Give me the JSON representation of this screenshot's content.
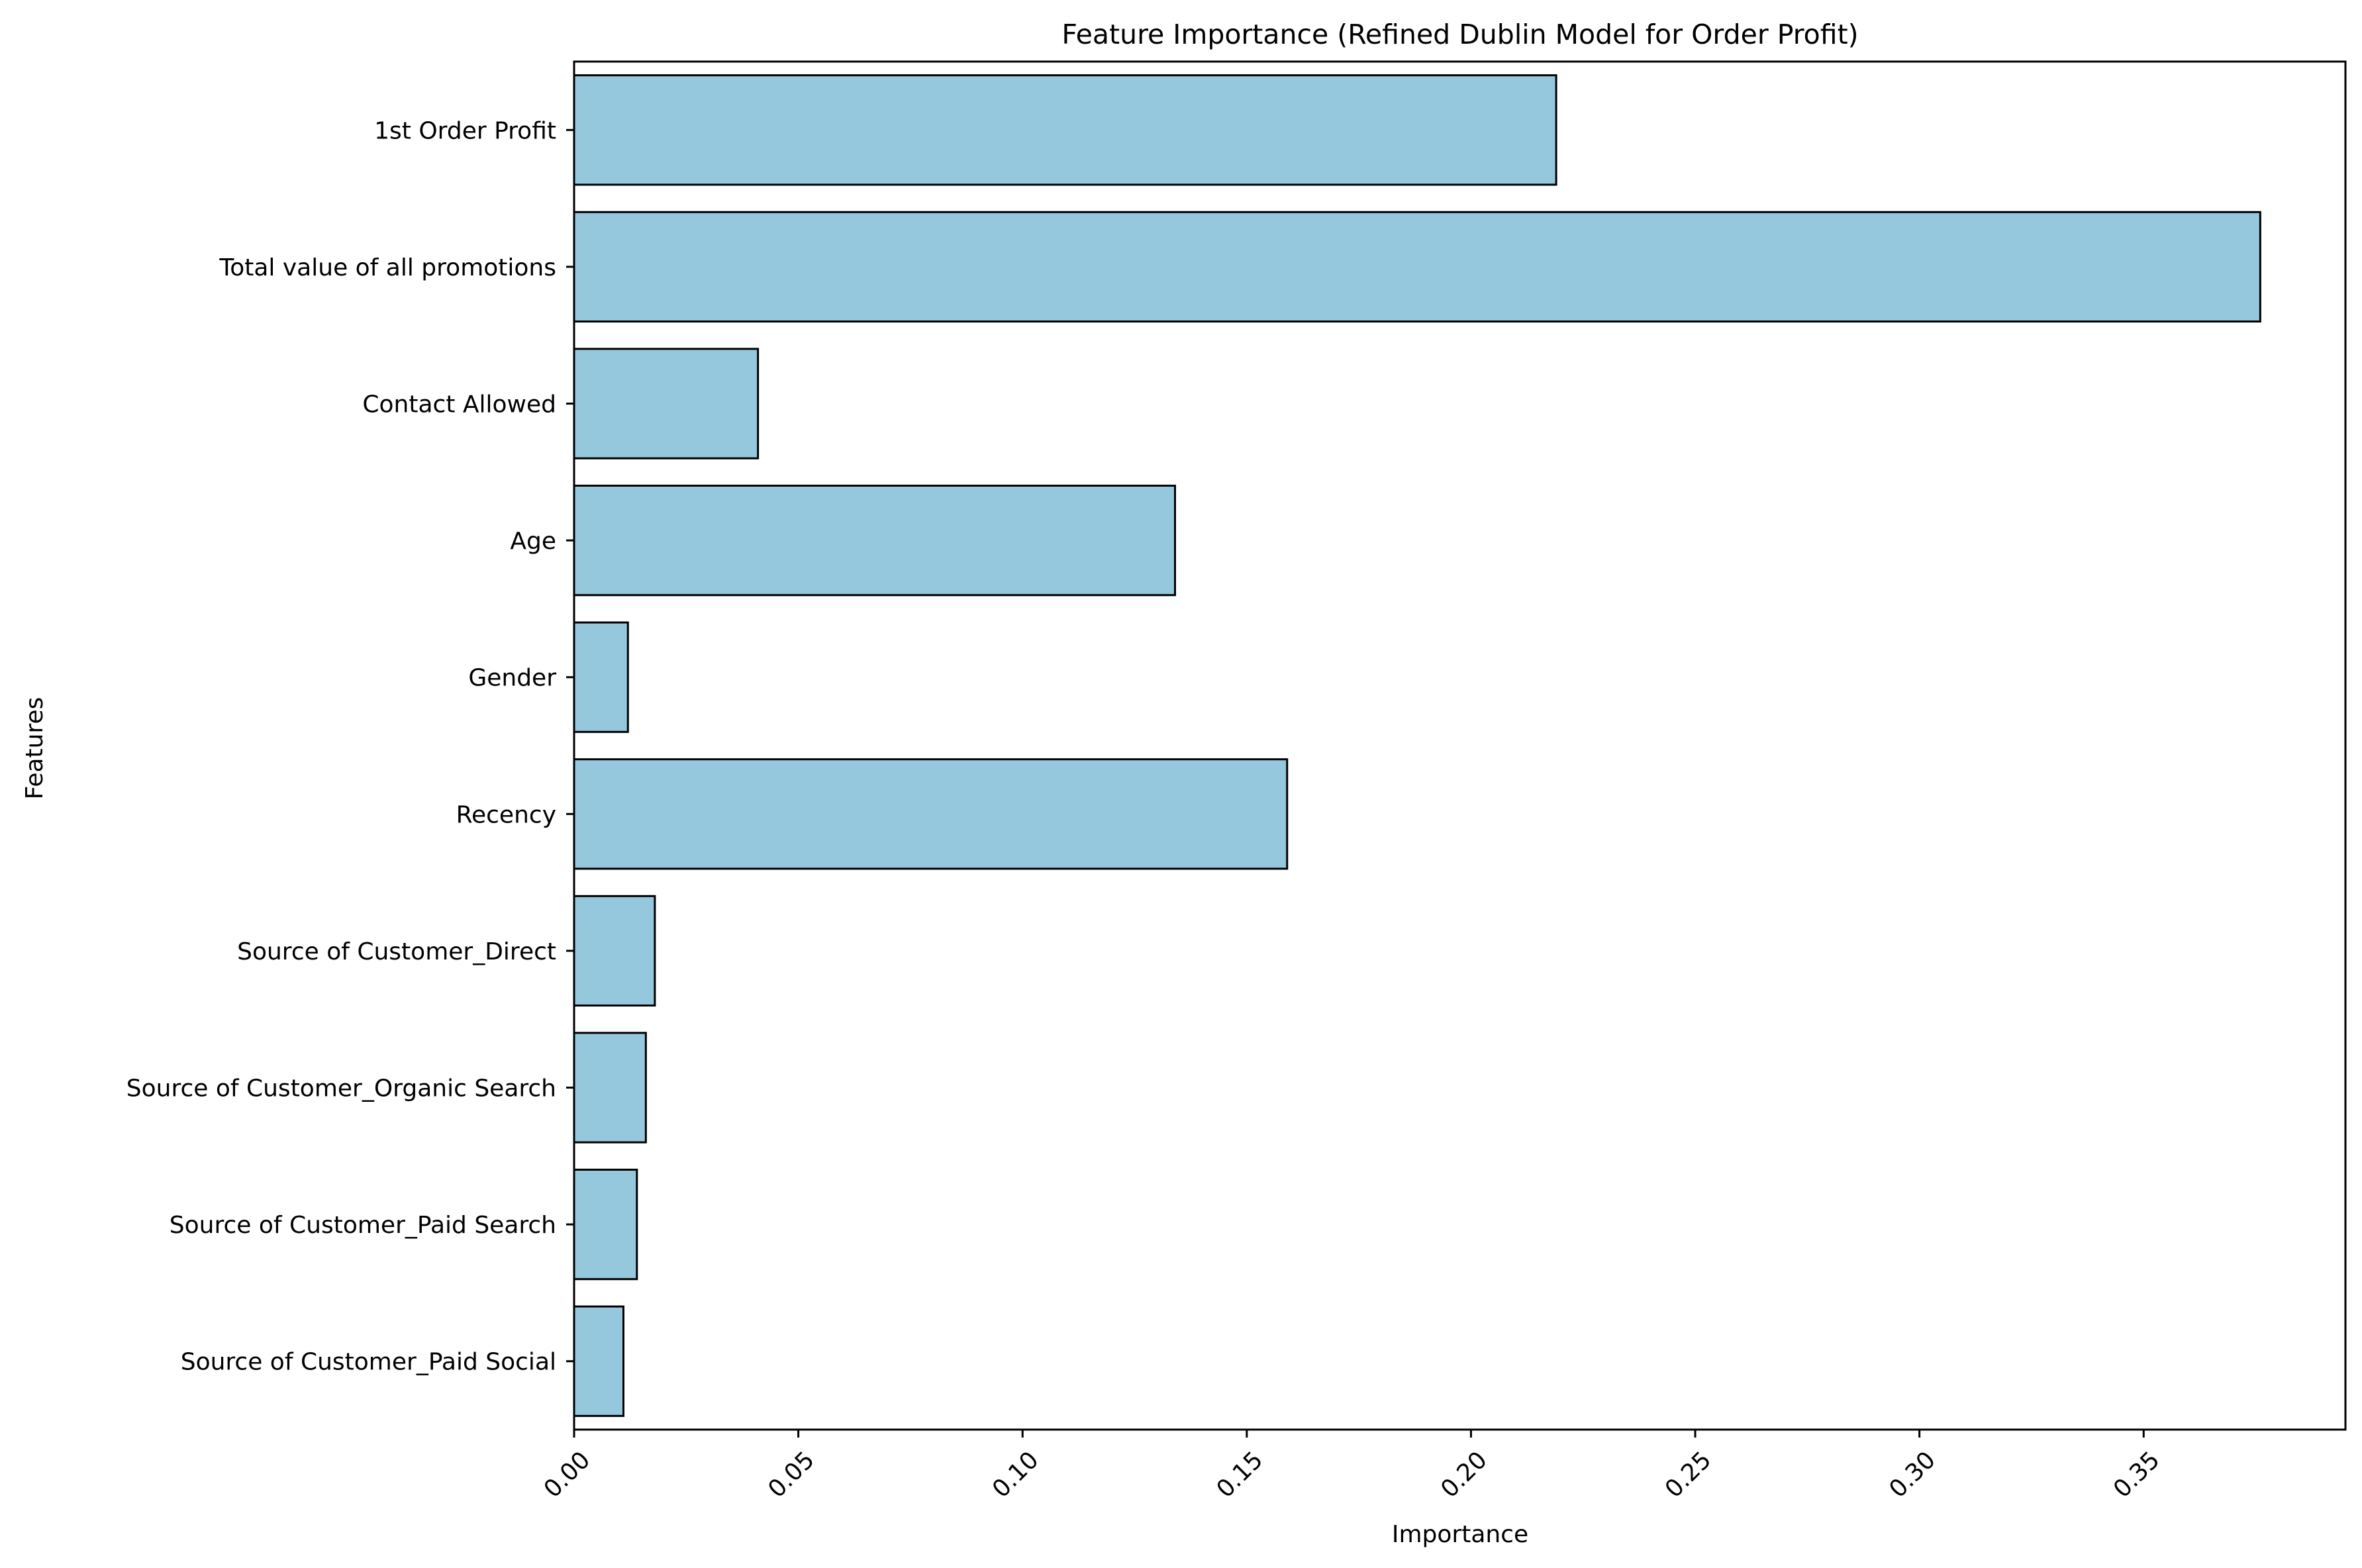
{
  "chart_data": {
    "type": "bar",
    "orientation": "horizontal",
    "title": "Feature Importance (Refined Dublin Model for Order Profit)",
    "xlabel": "Importance",
    "ylabel": "Features",
    "categories": [
      "1st Order Profit",
      "Total value of all promotions",
      "Contact Allowed",
      "Age",
      "Gender",
      "Recency",
      "Source of Customer_Direct",
      "Source of Customer_Organic Search",
      "Source of Customer_Paid Search",
      "Source of Customer_Paid Social"
    ],
    "values": [
      0.219,
      0.376,
      0.041,
      0.134,
      0.012,
      0.159,
      0.018,
      0.016,
      0.014,
      0.011
    ],
    "xlim": [
      0,
      0.395
    ],
    "xticks": [
      0.0,
      0.05,
      0.1,
      0.15,
      0.2,
      0.25,
      0.3,
      0.35
    ],
    "xtick_labels": [
      "0.00",
      "0.05",
      "0.10",
      "0.15",
      "0.20",
      "0.25",
      "0.30",
      "0.35"
    ],
    "grid": false,
    "colors": {
      "bar_fill": "#95c8dd",
      "bar_edge": "#000000",
      "axis": "#000000"
    }
  }
}
